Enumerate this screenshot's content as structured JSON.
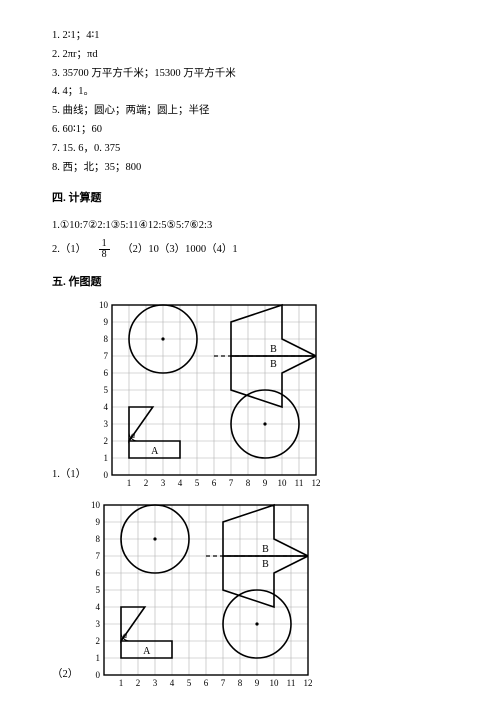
{
  "answers": {
    "a1": "1. 2∶1；4∶1",
    "a2": "2. 2πr；πd",
    "a3": "3. 35700 万平方千米；15300 万平方千米",
    "a4": "4. 4；1。",
    "a5": "5. 曲线；圆心；两端；圆上；半径",
    "a6": "6. 60∶1；60",
    "a7": "7. 15. 6，0. 375",
    "a8": "8. 西；北；35；800"
  },
  "section4": {
    "title": "四. 计算题",
    "q1": "1.①10:7②2:1③5:11④12:5⑤5:7⑥2:3",
    "q2_label": "2.（1）",
    "q2_frac_num": "1",
    "q2_frac_den": "8",
    "q2_rest": "（2）10（3）1000（4）1"
  },
  "section5": {
    "title": "五. 作图题",
    "label1": "1.（1）",
    "label2": "（2）"
  },
  "grid": {
    "cell": 17,
    "cols": 12,
    "rows": 10,
    "stroke_grid": "#b0b0b0",
    "stroke_shape": "#000000",
    "bg": "#ffffff",
    "axis_font": 9,
    "y_labels": [
      "10",
      "9",
      "8",
      "7",
      "6",
      "5",
      "4",
      "3",
      "2",
      "1",
      "0"
    ],
    "x_labels": [
      "1",
      "2",
      "3",
      "4",
      "5",
      "6",
      "7",
      "8",
      "9",
      "10",
      "11",
      "12"
    ]
  }
}
